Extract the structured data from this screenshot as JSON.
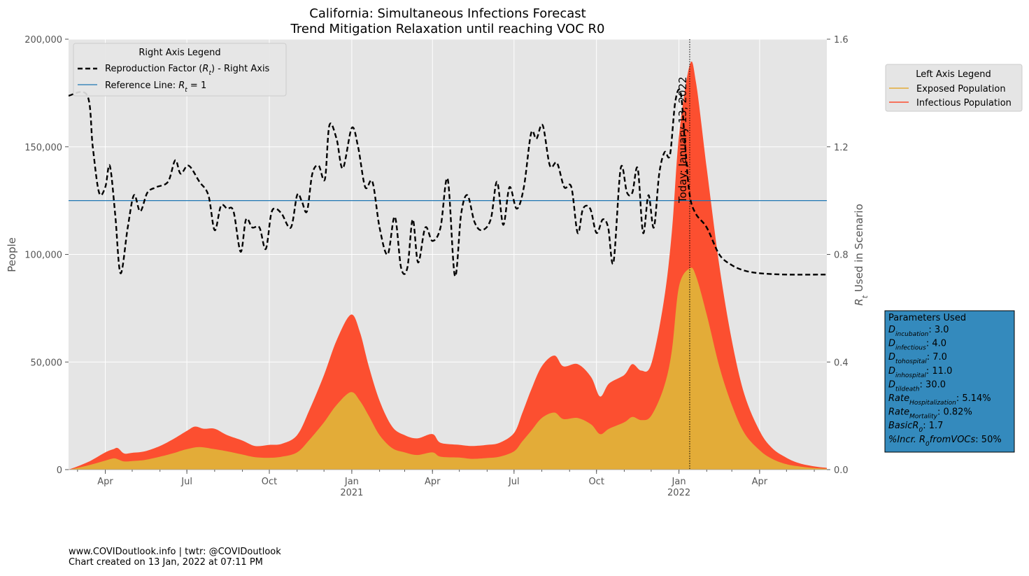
{
  "chart_data": {
    "type": "area",
    "title": "California: Simultaneous Infections Forecast",
    "subtitle": "Trend Mitigation Relaxation until reaching VOC R0",
    "ylabel": "People",
    "y2label": "R_t Used in Scenario",
    "ylim": [
      0,
      200000
    ],
    "y2lim": [
      0,
      1.6
    ],
    "xlim": [
      "2020-02-20",
      "2022-06-15"
    ],
    "yticks": [
      "0",
      "50,000",
      "100,000",
      "150,000",
      "200,000"
    ],
    "y2ticks": [
      "0.0",
      "0.4",
      "0.8",
      "1.2",
      "1.6"
    ],
    "xticks": [
      {
        "date": "2020-04-01",
        "label": "Apr",
        "year": ""
      },
      {
        "date": "2020-07-01",
        "label": "Jul",
        "year": ""
      },
      {
        "date": "2020-10-01",
        "label": "Oct",
        "year": ""
      },
      {
        "date": "2021-01-01",
        "label": "Jan",
        "year": "2021"
      },
      {
        "date": "2021-04-01",
        "label": "Apr",
        "year": ""
      },
      {
        "date": "2021-07-01",
        "label": "Jul",
        "year": ""
      },
      {
        "date": "2021-10-01",
        "label": "Oct",
        "year": ""
      },
      {
        "date": "2022-01-01",
        "label": "Jan",
        "year": "2022"
      },
      {
        "date": "2022-04-01",
        "label": "Apr",
        "year": ""
      }
    ],
    "today": {
      "date": "2022-01-13",
      "label": "Today: January 13, 2022"
    },
    "reference_rt": 1.0,
    "series": [
      {
        "name": "Exposed Population",
        "axis": "left",
        "color": "#E3AC38",
        "points": [
          [
            "2020-02-20",
            0
          ],
          [
            "2020-03-01",
            800
          ],
          [
            "2020-03-15",
            2200
          ],
          [
            "2020-04-01",
            4200
          ],
          [
            "2020-04-10",
            5200
          ],
          [
            "2020-04-15",
            4800
          ],
          [
            "2020-04-22",
            3800
          ],
          [
            "2020-05-01",
            4000
          ],
          [
            "2020-05-15",
            4500
          ],
          [
            "2020-06-01",
            6000
          ],
          [
            "2020-06-15",
            7500
          ],
          [
            "2020-07-01",
            9500
          ],
          [
            "2020-07-15",
            10500
          ],
          [
            "2020-08-01",
            9500
          ],
          [
            "2020-08-15",
            8500
          ],
          [
            "2020-09-01",
            7000
          ],
          [
            "2020-09-15",
            5800
          ],
          [
            "2020-10-01",
            5500
          ],
          [
            "2020-10-15",
            6000
          ],
          [
            "2020-11-01",
            8000
          ],
          [
            "2020-11-15",
            14000
          ],
          [
            "2020-12-01",
            22000
          ],
          [
            "2020-12-15",
            30000
          ],
          [
            "2020-12-31",
            36000
          ],
          [
            "2021-01-10",
            32000
          ],
          [
            "2021-01-20",
            25000
          ],
          [
            "2021-02-01",
            16000
          ],
          [
            "2021-02-15",
            10000
          ],
          [
            "2021-03-01",
            8000
          ],
          [
            "2021-03-15",
            6800
          ],
          [
            "2021-04-01",
            8000
          ],
          [
            "2021-04-10",
            6000
          ],
          [
            "2021-05-01",
            5600
          ],
          [
            "2021-05-15",
            5000
          ],
          [
            "2021-06-01",
            5400
          ],
          [
            "2021-06-15",
            6000
          ],
          [
            "2021-07-01",
            8500
          ],
          [
            "2021-07-10",
            13000
          ],
          [
            "2021-07-20",
            18000
          ],
          [
            "2021-08-01",
            24000
          ],
          [
            "2021-08-15",
            26500
          ],
          [
            "2021-08-25",
            23500
          ],
          [
            "2021-09-10",
            24000
          ],
          [
            "2021-09-25",
            21000
          ],
          [
            "2021-10-05",
            16500
          ],
          [
            "2021-10-15",
            19000
          ],
          [
            "2021-11-01",
            22000
          ],
          [
            "2021-11-10",
            24500
          ],
          [
            "2021-11-20",
            23000
          ],
          [
            "2021-12-01",
            25000
          ],
          [
            "2021-12-15",
            38000
          ],
          [
            "2021-12-24",
            55000
          ],
          [
            "2022-01-01",
            85000
          ],
          [
            "2022-01-13",
            93500
          ],
          [
            "2022-01-20",
            90000
          ],
          [
            "2022-02-01",
            72000
          ],
          [
            "2022-02-15",
            48000
          ],
          [
            "2022-03-01",
            30000
          ],
          [
            "2022-03-15",
            17000
          ],
          [
            "2022-04-01",
            9000
          ],
          [
            "2022-04-15",
            5000
          ],
          [
            "2022-05-01",
            2500
          ],
          [
            "2022-05-15",
            1500
          ],
          [
            "2022-06-01",
            700
          ],
          [
            "2022-06-15",
            400
          ]
        ]
      },
      {
        "name": "Infectious Population",
        "axis": "left",
        "color": "#FC4F30",
        "points": [
          [
            "2020-02-20",
            0
          ],
          [
            "2020-03-01",
            1500
          ],
          [
            "2020-03-15",
            4000
          ],
          [
            "2020-04-01",
            8000
          ],
          [
            "2020-04-10",
            9500
          ],
          [
            "2020-04-15",
            10000
          ],
          [
            "2020-04-22",
            7500
          ],
          [
            "2020-05-01",
            7800
          ],
          [
            "2020-05-15",
            8500
          ],
          [
            "2020-06-01",
            11000
          ],
          [
            "2020-06-15",
            14000
          ],
          [
            "2020-07-01",
            18000
          ],
          [
            "2020-07-10",
            20000
          ],
          [
            "2020-07-20",
            19000
          ],
          [
            "2020-08-01",
            19000
          ],
          [
            "2020-08-15",
            16000
          ],
          [
            "2020-09-01",
            13500
          ],
          [
            "2020-09-15",
            11000
          ],
          [
            "2020-10-01",
            11500
          ],
          [
            "2020-10-15",
            12000
          ],
          [
            "2020-11-01",
            16000
          ],
          [
            "2020-11-15",
            28000
          ],
          [
            "2020-12-01",
            44000
          ],
          [
            "2020-12-15",
            60000
          ],
          [
            "2020-12-31",
            72000
          ],
          [
            "2021-01-10",
            64000
          ],
          [
            "2021-01-20",
            48000
          ],
          [
            "2021-02-01",
            32000
          ],
          [
            "2021-02-15",
            20000
          ],
          [
            "2021-03-01",
            16000
          ],
          [
            "2021-03-15",
            14500
          ],
          [
            "2021-04-01",
            16500
          ],
          [
            "2021-04-10",
            12500
          ],
          [
            "2021-05-01",
            11500
          ],
          [
            "2021-05-15",
            11000
          ],
          [
            "2021-06-01",
            11500
          ],
          [
            "2021-06-15",
            12500
          ],
          [
            "2021-07-01",
            17000
          ],
          [
            "2021-07-10",
            26000
          ],
          [
            "2021-07-20",
            37000
          ],
          [
            "2021-08-01",
            48000
          ],
          [
            "2021-08-15",
            53000
          ],
          [
            "2021-08-25",
            48000
          ],
          [
            "2021-09-10",
            49000
          ],
          [
            "2021-09-25",
            43000
          ],
          [
            "2021-10-05",
            34000
          ],
          [
            "2021-10-15",
            40000
          ],
          [
            "2021-11-01",
            44000
          ],
          [
            "2021-11-10",
            49000
          ],
          [
            "2021-11-20",
            46000
          ],
          [
            "2021-12-01",
            49000
          ],
          [
            "2021-12-15",
            78000
          ],
          [
            "2021-12-24",
            110000
          ],
          [
            "2022-01-01",
            155000
          ],
          [
            "2022-01-13",
            188000
          ],
          [
            "2022-01-20",
            180000
          ],
          [
            "2022-02-01",
            140000
          ],
          [
            "2022-02-15",
            95000
          ],
          [
            "2022-03-01",
            60000
          ],
          [
            "2022-03-15",
            35000
          ],
          [
            "2022-04-01",
            18000
          ],
          [
            "2022-04-15",
            10000
          ],
          [
            "2022-05-01",
            5500
          ],
          [
            "2022-05-15",
            3000
          ],
          [
            "2022-06-01",
            1500
          ],
          [
            "2022-06-15",
            800
          ]
        ]
      },
      {
        "name": "Reproduction Factor ($R_t$) - Right Axis",
        "axis": "right",
        "color": "#000000",
        "style": "dashed",
        "points": [
          [
            "2020-02-20",
            1.39
          ],
          [
            "2020-03-12",
            1.39
          ],
          [
            "2020-03-18",
            1.2
          ],
          [
            "2020-03-25",
            1.03
          ],
          [
            "2020-04-01",
            1.05
          ],
          [
            "2020-04-06",
            1.13
          ],
          [
            "2020-04-12",
            0.95
          ],
          [
            "2020-04-18",
            0.73
          ],
          [
            "2020-04-26",
            0.9
          ],
          [
            "2020-05-03",
            1.02
          ],
          [
            "2020-05-10",
            0.96
          ],
          [
            "2020-05-18",
            1.03
          ],
          [
            "2020-05-28",
            1.05
          ],
          [
            "2020-06-10",
            1.07
          ],
          [
            "2020-06-18",
            1.15
          ],
          [
            "2020-06-24",
            1.1
          ],
          [
            "2020-07-03",
            1.13
          ],
          [
            "2020-07-15",
            1.07
          ],
          [
            "2020-07-25",
            1.02
          ],
          [
            "2020-08-01",
            0.89
          ],
          [
            "2020-08-08",
            0.98
          ],
          [
            "2020-08-15",
            0.97
          ],
          [
            "2020-08-22",
            0.96
          ],
          [
            "2020-08-30",
            0.81
          ],
          [
            "2020-09-05",
            0.93
          ],
          [
            "2020-09-12",
            0.9
          ],
          [
            "2020-09-20",
            0.9
          ],
          [
            "2020-09-27",
            0.82
          ],
          [
            "2020-10-03",
            0.95
          ],
          [
            "2020-10-08",
            0.97
          ],
          [
            "2020-10-15",
            0.95
          ],
          [
            "2020-10-25",
            0.9
          ],
          [
            "2020-11-01",
            1.02
          ],
          [
            "2020-11-06",
            1.0
          ],
          [
            "2020-11-12",
            0.96
          ],
          [
            "2020-11-18",
            1.1
          ],
          [
            "2020-11-25",
            1.13
          ],
          [
            "2020-12-02",
            1.08
          ],
          [
            "2020-12-07",
            1.28
          ],
          [
            "2020-12-15",
            1.23
          ],
          [
            "2020-12-22",
            1.12
          ],
          [
            "2021-01-01",
            1.27
          ],
          [
            "2021-01-08",
            1.2
          ],
          [
            "2021-01-16",
            1.05
          ],
          [
            "2021-01-24",
            1.07
          ],
          [
            "2021-02-01",
            0.9
          ],
          [
            "2021-02-10",
            0.8
          ],
          [
            "2021-02-18",
            0.94
          ],
          [
            "2021-02-25",
            0.75
          ],
          [
            "2021-03-04",
            0.75
          ],
          [
            "2021-03-10",
            0.93
          ],
          [
            "2021-03-16",
            0.77
          ],
          [
            "2021-03-24",
            0.9
          ],
          [
            "2021-04-01",
            0.85
          ],
          [
            "2021-04-10",
            0.9
          ],
          [
            "2021-04-18",
            1.08
          ],
          [
            "2021-04-26",
            0.72
          ],
          [
            "2021-05-03",
            0.95
          ],
          [
            "2021-05-10",
            1.02
          ],
          [
            "2021-05-18",
            0.92
          ],
          [
            "2021-05-26",
            0.89
          ],
          [
            "2021-06-05",
            0.93
          ],
          [
            "2021-06-12",
            1.07
          ],
          [
            "2021-06-19",
            0.91
          ],
          [
            "2021-06-26",
            1.05
          ],
          [
            "2021-07-04",
            0.97
          ],
          [
            "2021-07-12",
            1.05
          ],
          [
            "2021-07-20",
            1.25
          ],
          [
            "2021-07-26",
            1.23
          ],
          [
            "2021-08-02",
            1.28
          ],
          [
            "2021-08-10",
            1.13
          ],
          [
            "2021-08-18",
            1.14
          ],
          [
            "2021-08-26",
            1.05
          ],
          [
            "2021-09-03",
            1.05
          ],
          [
            "2021-09-10",
            0.88
          ],
          [
            "2021-09-16",
            0.97
          ],
          [
            "2021-09-24",
            0.97
          ],
          [
            "2021-10-01",
            0.88
          ],
          [
            "2021-10-08",
            0.93
          ],
          [
            "2021-10-14",
            0.9
          ],
          [
            "2021-10-20",
            0.77
          ],
          [
            "2021-10-28",
            1.12
          ],
          [
            "2021-11-04",
            1.03
          ],
          [
            "2021-11-10",
            1.03
          ],
          [
            "2021-11-16",
            1.12
          ],
          [
            "2021-11-22",
            0.88
          ],
          [
            "2021-11-28",
            1.02
          ],
          [
            "2021-12-04",
            0.9
          ],
          [
            "2021-12-10",
            1.1
          ],
          [
            "2021-12-16",
            1.18
          ],
          [
            "2021-12-22",
            1.17
          ],
          [
            "2021-12-28",
            1.37
          ],
          [
            "2022-01-03",
            1.4
          ],
          [
            "2022-01-08",
            1.2
          ],
          [
            "2022-01-13",
            1.02
          ],
          [
            "2022-01-20",
            0.95
          ],
          [
            "2022-02-01",
            0.9
          ],
          [
            "2022-02-15",
            0.8
          ],
          [
            "2022-03-01",
            0.76
          ],
          [
            "2022-03-15",
            0.74
          ],
          [
            "2022-04-01",
            0.73
          ],
          [
            "2022-05-01",
            0.725
          ],
          [
            "2022-06-15",
            0.725
          ]
        ]
      }
    ],
    "right_legend": {
      "title": "Right Axis Legend",
      "entries": [
        "Reproduction Factor ($R_t$) - Right Axis",
        "Reference Line: $R_t = 1$"
      ]
    },
    "left_legend": {
      "title": "Left Axis Legend",
      "entries": [
        "Exposed Population",
        "Infectious Population"
      ]
    },
    "parameters": {
      "title": "Parameters Used",
      "items": [
        {
          "name": "D",
          "sub": "incubation",
          "value": "3.0"
        },
        {
          "name": "D",
          "sub": "infectious",
          "value": "4.0"
        },
        {
          "name": "D",
          "sub": "tohospital",
          "value": "7.0"
        },
        {
          "name": "D",
          "sub": "inhospital",
          "value": "11.0"
        },
        {
          "name": "D",
          "sub": "tildeath",
          "value": "30.0"
        },
        {
          "name": "Rate",
          "sub": "Hospitalization",
          "value": "5.14%"
        },
        {
          "name": "Rate",
          "sub": "Mortality",
          "value": "0.82%"
        },
        {
          "name": "BasicR",
          "sub": "0",
          "value": "1.7"
        },
        {
          "name": "%Incr. R",
          "sub": "0",
          "tail": "fromVOCs",
          "value": "50%"
        }
      ]
    },
    "colors": {
      "exposed": "#E3AC38",
      "infectious": "#FC4F30",
      "reference": "#1f77b4",
      "plot_bg": "#E5E5E5",
      "param_box": "#348ABD"
    }
  },
  "footer": {
    "line1": "www.COVIDoutlook.info | twtr: @COVIDoutlook",
    "line2": "Chart created on 13 Jan, 2022 at 07:11 PM"
  }
}
